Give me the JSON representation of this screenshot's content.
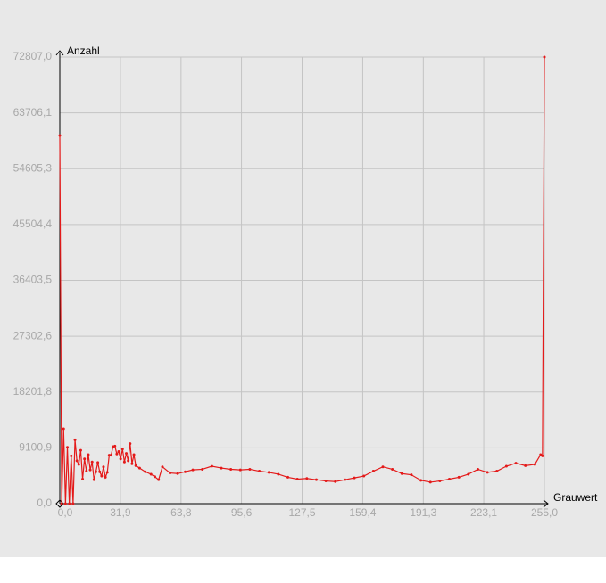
{
  "chart_data": {
    "type": "line",
    "x_label": "Grauwert",
    "y_label": "Anzahl",
    "color": "#e41a1a",
    "grid": true,
    "xlim": [
      0,
      255
    ],
    "ylim": [
      0,
      72807
    ],
    "xticks": [
      {
        "value": 0,
        "label": "0,0"
      },
      {
        "value": 31.9,
        "label": "31,9"
      },
      {
        "value": 63.8,
        "label": "63,8"
      },
      {
        "value": 95.6,
        "label": "95,6"
      },
      {
        "value": 127.5,
        "label": "127,5"
      },
      {
        "value": 159.4,
        "label": "159,4"
      },
      {
        "value": 191.3,
        "label": "191,3"
      },
      {
        "value": 223.1,
        "label": "223,1"
      },
      {
        "value": 255,
        "label": "255,0"
      }
    ],
    "yticks": [
      {
        "value": 0,
        "label": "0,0"
      },
      {
        "value": 9100.9,
        "label": "9100,9"
      },
      {
        "value": 18201.8,
        "label": "18201,8"
      },
      {
        "value": 27302.6,
        "label": "27302,6"
      },
      {
        "value": 36403.5,
        "label": "36403,5"
      },
      {
        "value": 45504.4,
        "label": "45504,4"
      },
      {
        "value": 54605.3,
        "label": "54605,3"
      },
      {
        "value": 63706.1,
        "label": "63706,1"
      },
      {
        "value": 72807,
        "label": "72807,0"
      }
    ],
    "x": [
      0,
      1,
      2,
      3,
      4,
      5,
      6,
      7,
      8,
      9,
      10,
      11,
      12,
      13,
      14,
      15,
      16,
      17,
      18,
      19,
      20,
      21,
      22,
      23,
      24,
      25,
      26,
      27,
      28,
      29,
      30,
      31,
      32,
      33,
      34,
      35,
      36,
      37,
      38,
      39,
      40,
      42,
      45,
      48,
      50,
      52,
      54,
      58,
      62,
      66,
      70,
      75,
      80,
      85,
      90,
      95,
      100,
      105,
      110,
      115,
      120,
      125,
      130,
      135,
      140,
      145,
      150,
      155,
      160,
      165,
      170,
      175,
      180,
      185,
      190,
      195,
      200,
      205,
      210,
      215,
      220,
      225,
      230,
      235,
      240,
      245,
      250,
      253,
      254,
      255
    ],
    "values": [
      60010,
      0,
      12200,
      0,
      9200,
      0,
      7800,
      0,
      10400,
      7000,
      6400,
      8700,
      4000,
      7300,
      5300,
      8000,
      5500,
      6800,
      3900,
      5200,
      6700,
      5200,
      4500,
      6000,
      4300,
      5100,
      7900,
      7900,
      9300,
      9400,
      8100,
      8500,
      7300,
      8900,
      6800,
      8200,
      7000,
      9800,
      6500,
      8000,
      6200,
      5800,
      5200,
      4800,
      4400,
      3900,
      6000,
      5000,
      4900,
      5200,
      5500,
      5600,
      6100,
      5800,
      5600,
      5500,
      5600,
      5300,
      5100,
      4800,
      4300,
      4000,
      4100,
      3900,
      3700,
      3600,
      3900,
      4200,
      4500,
      5300,
      6000,
      5600,
      4900,
      4700,
      3800,
      3500,
      3700,
      4000,
      4300,
      4800,
      5600,
      5100,
      5300,
      6100,
      6600,
      6200,
      6400,
      8000,
      7800,
      72807
    ]
  }
}
